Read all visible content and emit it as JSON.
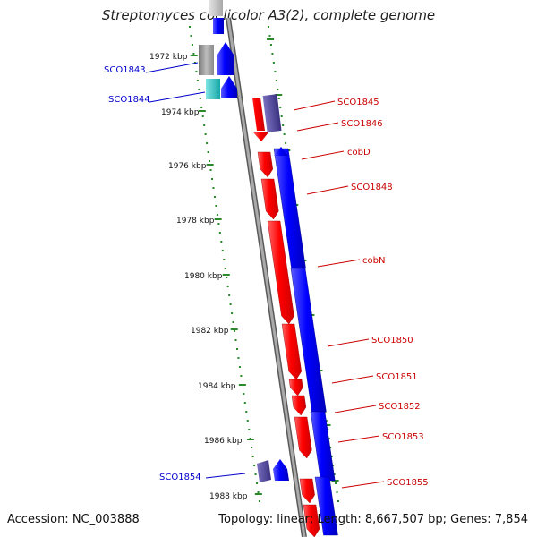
{
  "title": "Streptomyces coelicolor A3(2), complete genome",
  "footer": {
    "accession": "Accession: NC_003888",
    "topology": "Topology: linear; Length: 8,667,507 bp; Genes: 7,854"
  },
  "colors": {
    "forward_gene": "#ff0000",
    "reverse_gene": "#0000ff",
    "reverse_gene_label": "#0000cc",
    "forward_gene_label": "#cc0000",
    "other_feature_dark": "#4a4090",
    "other_feature_gray": "#bdbdbd",
    "other_feature_cyan": "#1fbfbf",
    "ruler_ticks": "#2a8a2a",
    "backbone": "#8c8c8c"
  },
  "scale": {
    "unit": "kbp",
    "ticks": [
      "1972 kbp",
      "1974 kbp",
      "1976 kbp",
      "1978 kbp",
      "1980 kbp",
      "1982 kbp",
      "1984 kbp",
      "1986 kbp",
      "1988 kbp"
    ]
  },
  "genes_left": [
    {
      "name": "SCO1843"
    },
    {
      "name": "SCO1844"
    },
    {
      "name": "SCO1854"
    }
  ],
  "genes_right": [
    {
      "name": "SCO1845"
    },
    {
      "name": "SCO1846"
    },
    {
      "name": "cobD"
    },
    {
      "name": "SCO1848"
    },
    {
      "name": "cobN"
    },
    {
      "name": "SCO1850"
    },
    {
      "name": "SCO1851"
    },
    {
      "name": "SCO1852"
    },
    {
      "name": "SCO1853"
    },
    {
      "name": "SCO1855"
    }
  ]
}
